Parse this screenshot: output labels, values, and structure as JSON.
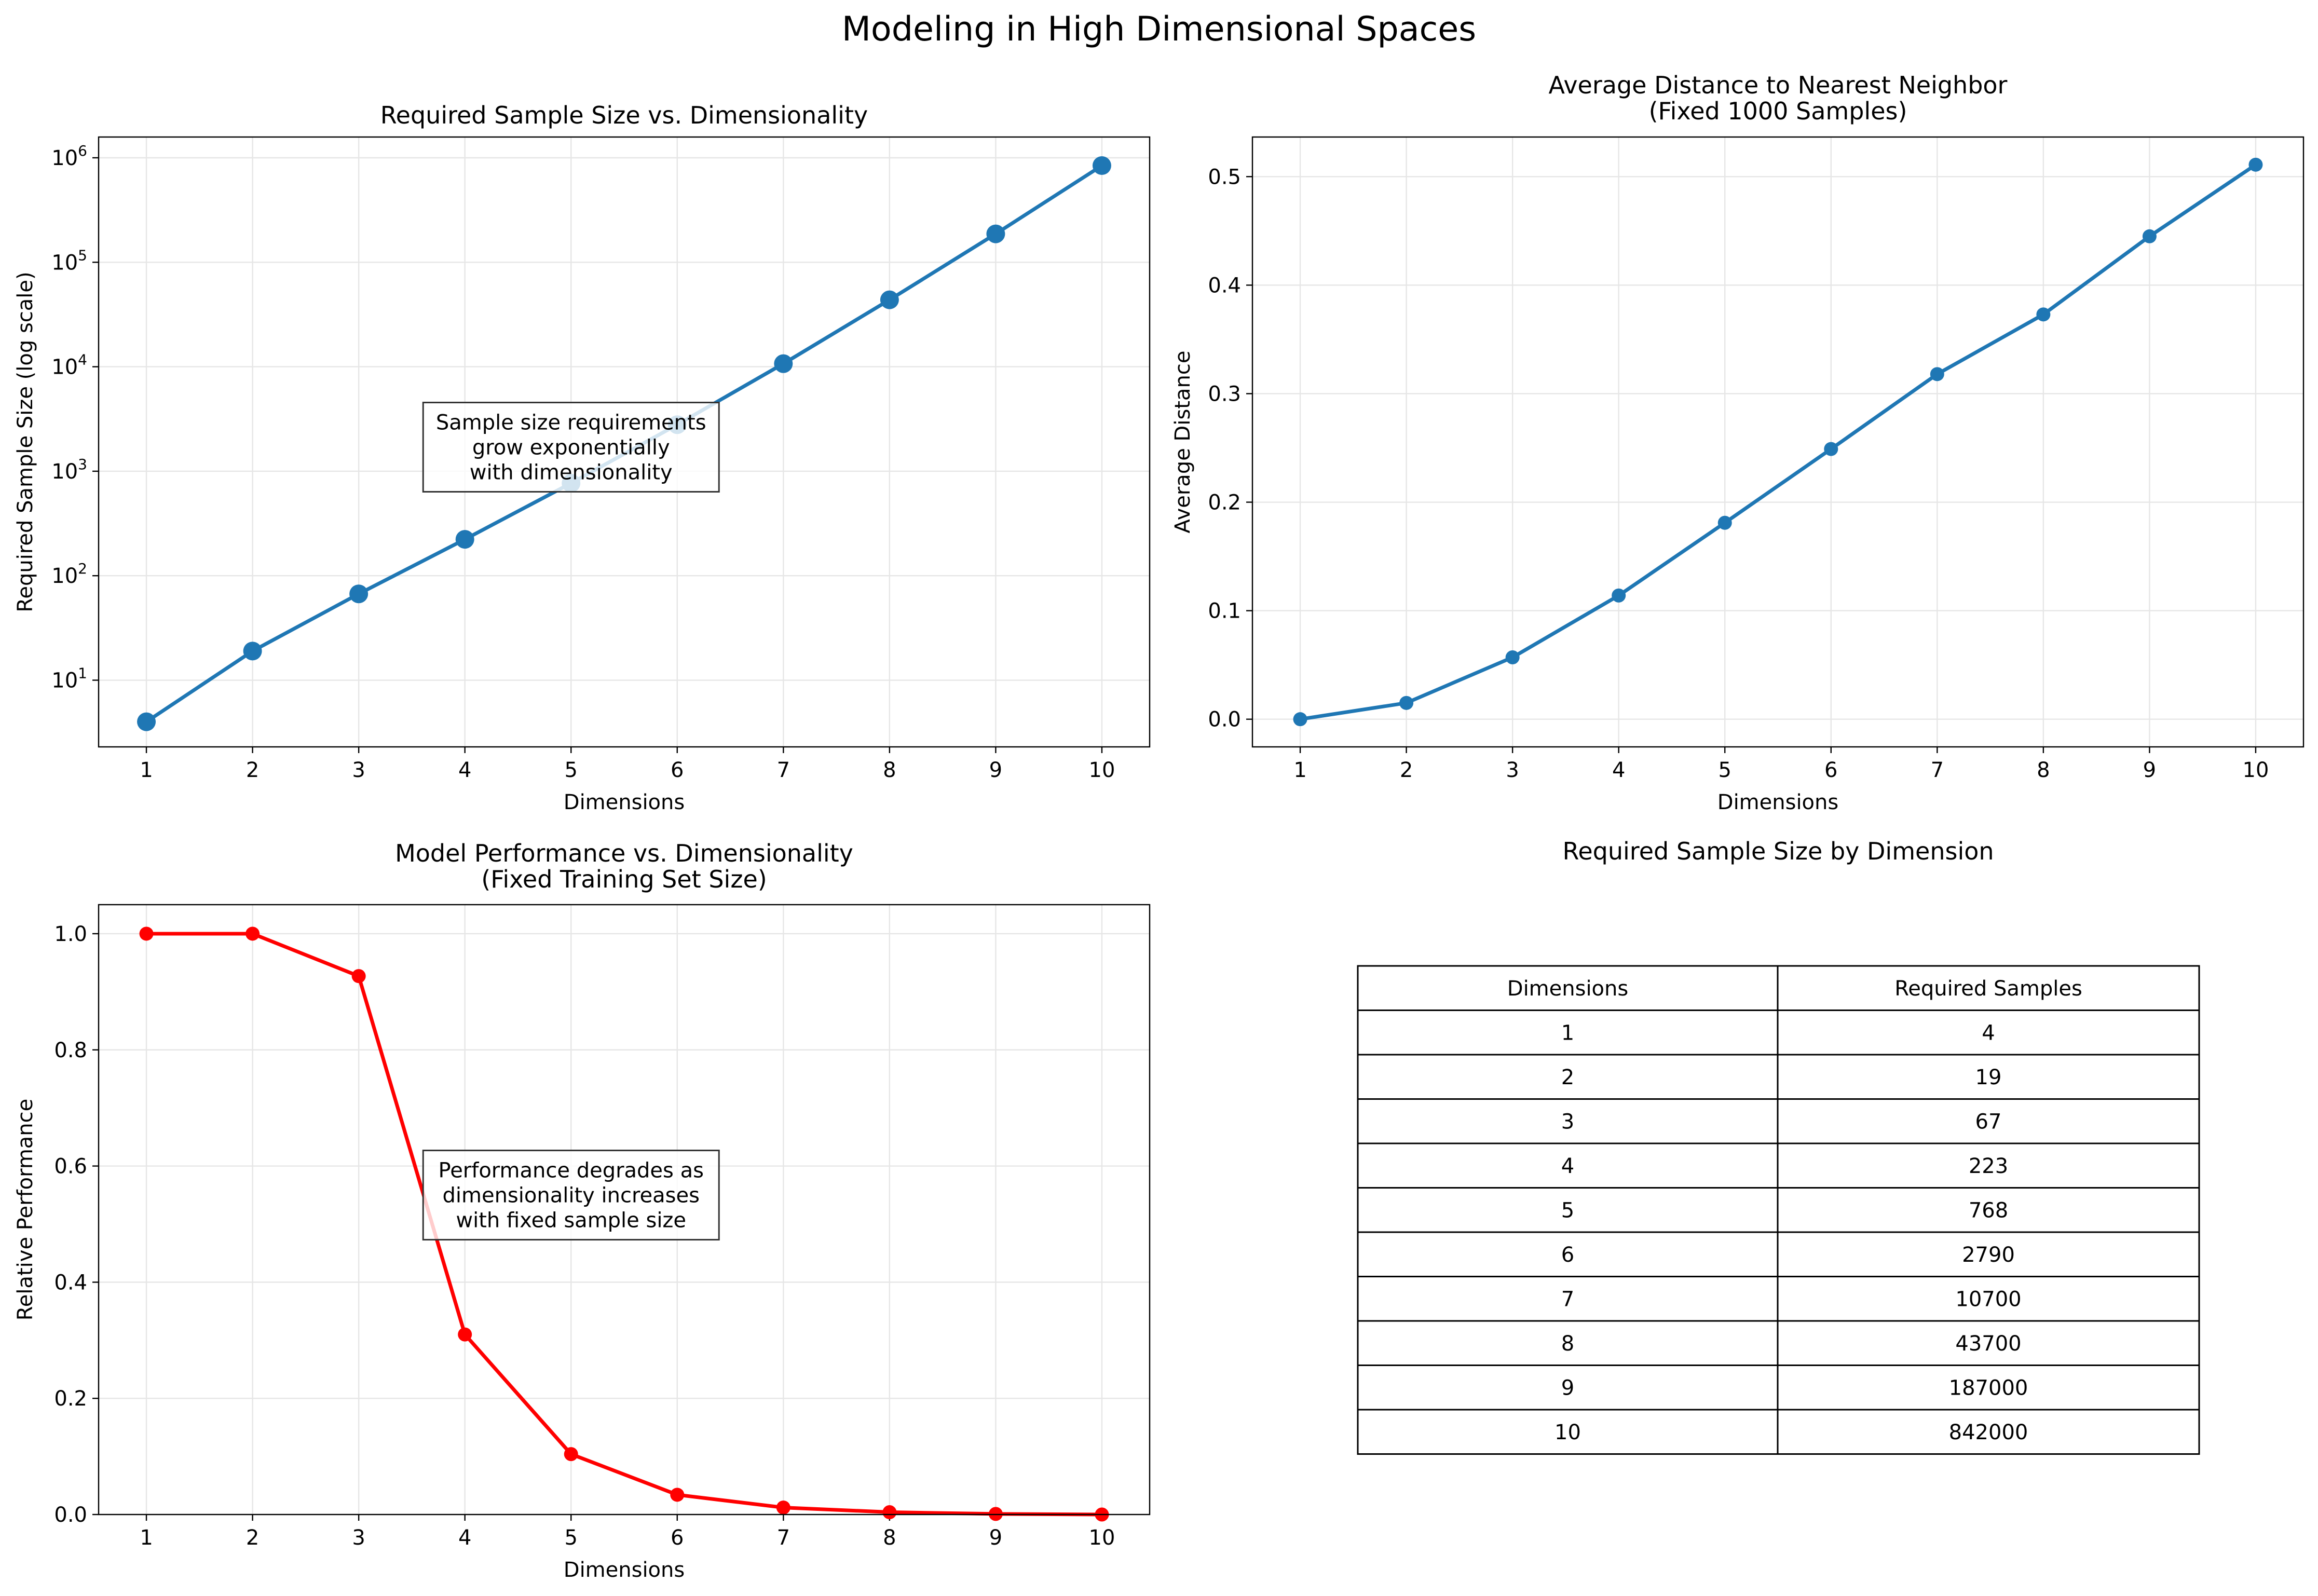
{
  "figure": {
    "title": "Modeling in High Dimensional Spaces"
  },
  "chart_data": [
    {
      "type": "line",
      "title": "Required Sample Size vs. Dimensionality",
      "xlabel": "Dimensions",
      "ylabel": "Required Sample Size (log scale)",
      "yscale": "log",
      "grid": true,
      "x": [
        1,
        2,
        3,
        4,
        5,
        6,
        7,
        8,
        9,
        10
      ],
      "xlim": [
        0.55,
        10.45
      ],
      "ylim": [
        2.3,
        1580000
      ],
      "yticks": [
        10,
        100,
        1000,
        10000,
        100000,
        1000000
      ],
      "ytick_labels": [
        {
          "base": "10",
          "exp": "1"
        },
        {
          "base": "10",
          "exp": "2"
        },
        {
          "base": "10",
          "exp": "3"
        },
        {
          "base": "10",
          "exp": "4"
        },
        {
          "base": "10",
          "exp": "5"
        },
        {
          "base": "10",
          "exp": "6"
        }
      ],
      "series": [
        {
          "values": [
            4,
            19,
            67,
            223,
            768,
            2790,
            10700,
            43700,
            187000,
            842000
          ],
          "color": "#1f77b4"
        }
      ],
      "annotation": {
        "lines": [
          "Sample size requirements",
          "grow exponentially",
          "with dimensionality"
        ],
        "x": 5,
        "y": 1700
      }
    },
    {
      "type": "line",
      "title": [
        "Average Distance to Nearest Neighbor",
        "(Fixed 1000 Samples)"
      ],
      "xlabel": "Dimensions",
      "ylabel": "Average Distance",
      "grid": true,
      "x": [
        1,
        2,
        3,
        4,
        5,
        6,
        7,
        8,
        9,
        10
      ],
      "xlim": [
        0.55,
        10.45
      ],
      "ylim": [
        -0.0255,
        0.5365
      ],
      "yticks": [
        0.0,
        0.1,
        0.2,
        0.3,
        0.4,
        0.5
      ],
      "series": [
        {
          "values": [
            0.0,
            0.015,
            0.057,
            0.114,
            0.181,
            0.249,
            0.318,
            0.373,
            0.445,
            0.511
          ],
          "color": "#1f77b4"
        }
      ]
    },
    {
      "type": "line",
      "title": [
        "Model Performance vs. Dimensionality",
        "(Fixed Training Set Size)"
      ],
      "xlabel": "Dimensions",
      "ylabel": "Relative Performance",
      "grid": true,
      "x": [
        1,
        2,
        3,
        4,
        5,
        6,
        7,
        8,
        9,
        10
      ],
      "xlim": [
        0.55,
        10.45
      ],
      "ylim": [
        0.0,
        1.05
      ],
      "yticks": [
        0.0,
        0.2,
        0.4,
        0.6,
        0.8,
        1.0
      ],
      "series": [
        {
          "values": [
            1.0,
            1.0,
            0.927,
            0.31,
            0.104,
            0.034,
            0.012,
            0.004,
            0.001,
            0.0
          ],
          "color": "#ff0000"
        }
      ],
      "annotation": {
        "lines": [
          "Performance degrades as",
          "dimensionality increases",
          "with fixed sample size"
        ],
        "x": 5,
        "y": 0.55
      }
    },
    {
      "type": "table",
      "title": "Required Sample Size by Dimension",
      "columns": [
        "Dimensions",
        "Required Samples"
      ],
      "rows": [
        [
          "1",
          "4"
        ],
        [
          "2",
          "19"
        ],
        [
          "3",
          "67"
        ],
        [
          "4",
          "223"
        ],
        [
          "5",
          "768"
        ],
        [
          "6",
          "2790"
        ],
        [
          "7",
          "10700"
        ],
        [
          "8",
          "43700"
        ],
        [
          "9",
          "187000"
        ],
        [
          "10",
          "842000"
        ]
      ]
    }
  ]
}
